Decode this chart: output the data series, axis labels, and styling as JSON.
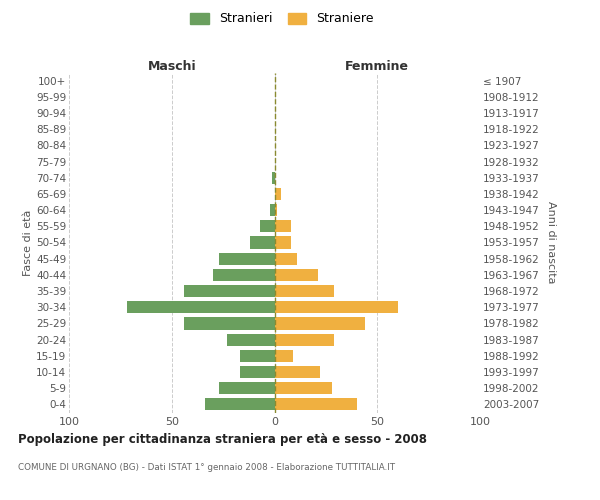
{
  "age_groups": [
    "100+",
    "95-99",
    "90-94",
    "85-89",
    "80-84",
    "75-79",
    "70-74",
    "65-69",
    "60-64",
    "55-59",
    "50-54",
    "45-49",
    "40-44",
    "35-39",
    "30-34",
    "25-29",
    "20-24",
    "15-19",
    "10-14",
    "5-9",
    "0-4"
  ],
  "birth_years": [
    "≤ 1907",
    "1908-1912",
    "1913-1917",
    "1918-1922",
    "1923-1927",
    "1928-1932",
    "1933-1937",
    "1938-1942",
    "1943-1947",
    "1948-1952",
    "1953-1957",
    "1958-1962",
    "1963-1967",
    "1968-1972",
    "1973-1977",
    "1978-1982",
    "1983-1987",
    "1988-1992",
    "1993-1997",
    "1998-2002",
    "2003-2007"
  ],
  "maschi": [
    0,
    0,
    0,
    0,
    0,
    0,
    1,
    0,
    2,
    7,
    12,
    27,
    30,
    44,
    72,
    44,
    23,
    17,
    17,
    27,
    34
  ],
  "femmine": [
    0,
    0,
    0,
    0,
    0,
    0,
    0,
    3,
    1,
    8,
    8,
    11,
    21,
    29,
    60,
    44,
    29,
    9,
    22,
    28,
    40
  ],
  "male_color": "#6a9f5e",
  "female_color": "#f0b040",
  "grid_color": "#cccccc",
  "center_line_color": "#8a8a30",
  "title": "Popolazione per cittadinanza straniera per età e sesso - 2008",
  "subtitle": "COMUNE DI URGNANO (BG) - Dati ISTAT 1° gennaio 2008 - Elaborazione TUTTITALIA.IT",
  "header_left": "Maschi",
  "header_right": "Femmine",
  "ylabel_left": "Fasce di età",
  "ylabel_right": "Anni di nascita",
  "legend_male": "Stranieri",
  "legend_female": "Straniere",
  "xlim": 100
}
